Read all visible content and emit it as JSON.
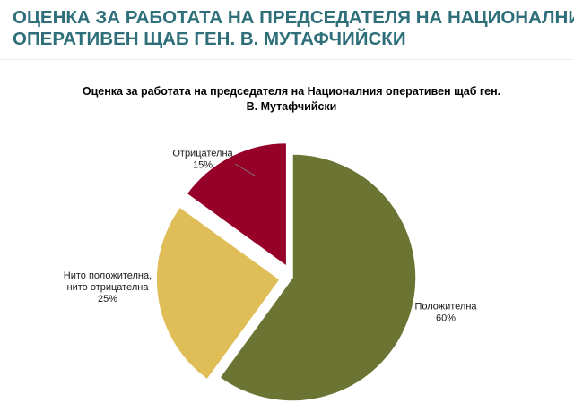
{
  "header": {
    "title_line1": "ОЦЕНКА ЗА РАБОТАТА НА ПРЕДСЕДАТЕЛЯ НА НАЦИОНАЛНИЯ",
    "title_line2": "ОПЕРАТИВЕН ЩАБ ГЕН. В. МУТАФЧИЙСКИ",
    "title_color": "#2e6f7a"
  },
  "chart_data": {
    "type": "pie",
    "title_line1": "Оценка за работата на председателя на Националния оперативен щаб ген.",
    "title_line2": "В. Мутафчийски",
    "slices": [
      {
        "label_lines": [
          "Положителна"
        ],
        "value": 60,
        "value_label": "60%",
        "color": "#6b7433",
        "exploded": false
      },
      {
        "label_lines": [
          "Нито положителна,",
          "нито отрицателна"
        ],
        "value": 25,
        "value_label": "25%",
        "color": "#dfbe58",
        "exploded": true
      },
      {
        "label_lines": [
          "Отрицателна"
        ],
        "value": 15,
        "value_label": "15%",
        "color": "#970028",
        "exploded": true
      }
    ],
    "legend": "none"
  }
}
